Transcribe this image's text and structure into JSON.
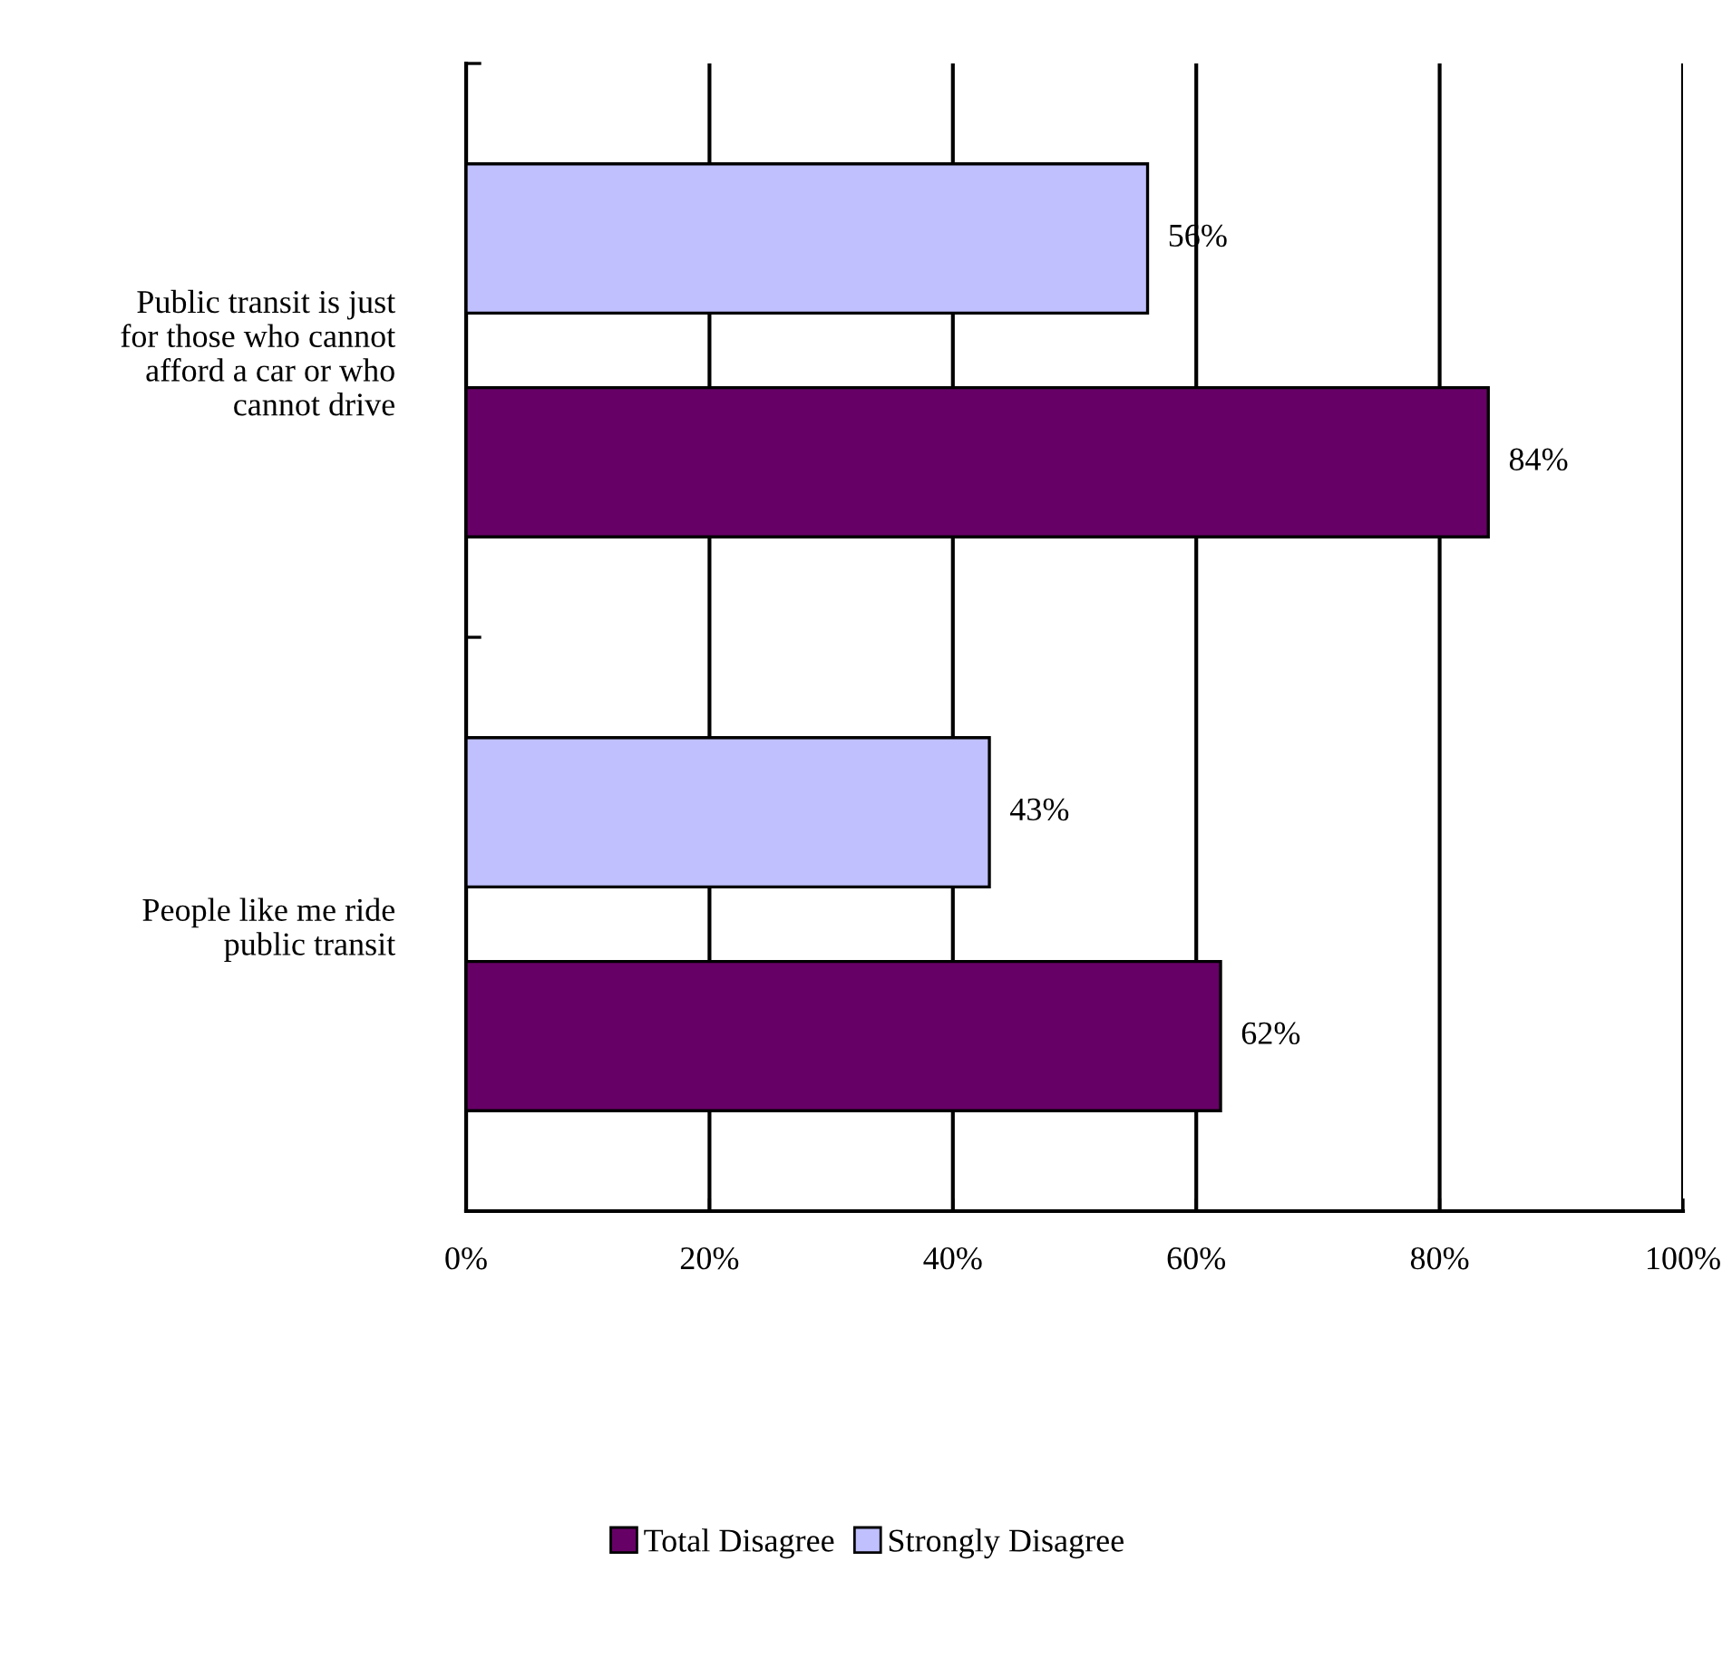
{
  "chart_data": {
    "type": "bar",
    "orientation": "horizontal",
    "categories": [
      "Public transit is just\nfor those who cannot\nafford a car or who\ncannot drive",
      "People like me ride\npublic transit"
    ],
    "series": [
      {
        "name": "Total Disagree",
        "color": "#660066",
        "values": [
          84,
          62
        ],
        "value_labels": [
          "84%",
          "62%"
        ]
      },
      {
        "name": "Strongly Disagree",
        "color": "#c0c0ff",
        "values": [
          56,
          43
        ],
        "value_labels": [
          "56%",
          "43%"
        ]
      }
    ],
    "xlim": [
      0,
      100
    ],
    "xticks": [
      {
        "value": 0,
        "label": "0%"
      },
      {
        "value": 20,
        "label": "20%"
      },
      {
        "value": 40,
        "label": "40%"
      },
      {
        "value": 60,
        "label": "60%"
      },
      {
        "value": 80,
        "label": "80%"
      },
      {
        "value": 100,
        "label": "100%"
      }
    ],
    "grid": "x",
    "legend": "bottom"
  }
}
